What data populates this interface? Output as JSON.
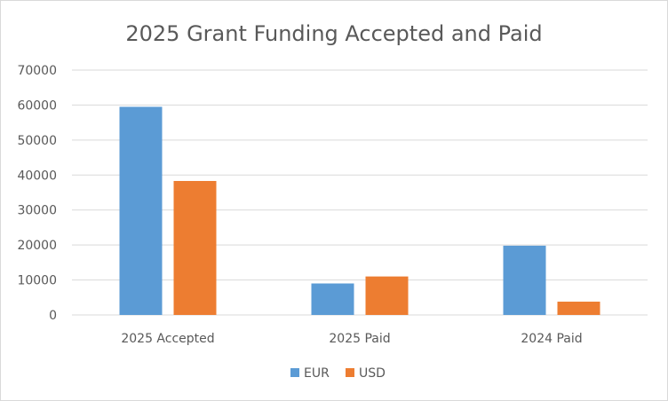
{
  "chart_data": {
    "type": "bar",
    "title": "2025 Grant Funding Accepted and Paid",
    "xlabel": "",
    "ylabel": "",
    "categories": [
      "2025 Accepted",
      "2025 Paid",
      "2024 Paid"
    ],
    "series": [
      {
        "name": "EUR",
        "color": "#5b9bd5",
        "values": [
          59500,
          9000,
          19800
        ]
      },
      {
        "name": "USD",
        "color": "#ed7d31",
        "values": [
          38300,
          11000,
          3800
        ]
      }
    ],
    "ylim": [
      0,
      70000
    ],
    "yticks": [
      0,
      10000,
      20000,
      30000,
      40000,
      50000,
      60000,
      70000
    ],
    "yticks_labels": [
      "0",
      "10000",
      "20000",
      "30000",
      "40000",
      "50000",
      "60000",
      "70000"
    ],
    "grid": true,
    "legend_position": "bottom"
  }
}
